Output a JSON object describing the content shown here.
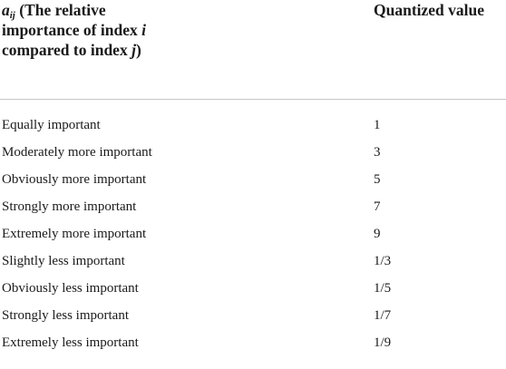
{
  "table": {
    "header": [
      [
        "a",
        "ij",
        " (The relative importance of index ",
        "i",
        " compared to index ",
        "j",
        ")"
      ],
      "Quantized value"
    ],
    "rows": [
      [
        "Equally important",
        1
      ],
      [
        "Moderately more important",
        3
      ],
      [
        "Obviously more important",
        5
      ],
      [
        "Strongly more important",
        7
      ],
      [
        "Extremely more important",
        9
      ],
      [
        "Slightly less important",
        "1/3"
      ],
      [
        "Obviously less important",
        "1/5"
      ],
      [
        "Strongly less important",
        "1/7"
      ],
      [
        "Extremely less important",
        "1/9"
      ]
    ]
  }
}
